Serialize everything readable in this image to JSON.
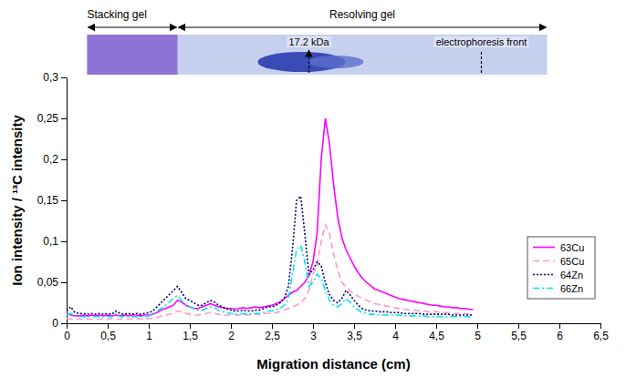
{
  "chart_data": {
    "type": "line",
    "x_label": "Migration distance (cm)",
    "y_label": "Ion intensity / ¹³C intensity",
    "xlim": [
      0,
      6.5
    ],
    "ylim": [
      0,
      0.3
    ],
    "xticks": [
      0,
      {
        "value": 0.5,
        "label": "0,5"
      },
      1,
      {
        "value": 1.5,
        "label": "1,5"
      },
      2,
      {
        "value": 2.5,
        "label": "2,5"
      },
      3,
      {
        "value": 3.5,
        "label": "3,5"
      },
      4,
      {
        "value": 4.5,
        "label": "4,5"
      },
      5,
      {
        "value": 5.5,
        "label": "5,5"
      },
      6,
      {
        "value": 6.5,
        "label": "6,5"
      }
    ],
    "yticks": [
      0,
      {
        "value": 0.05,
        "label": "0,05"
      },
      {
        "value": 0.1,
        "label": "0,1"
      },
      {
        "value": 0.15,
        "label": "0,15"
      },
      {
        "value": 0.2,
        "label": "0,2"
      },
      {
        "value": 0.25,
        "label": "0,25"
      },
      {
        "value": 0.3,
        "label": "0,3"
      }
    ],
    "legend": "right",
    "grid": false,
    "regions": [
      {
        "label": "Stacking gel",
        "x": [
          0.25,
          1.35
        ]
      },
      {
        "label": "Resolving gel",
        "x": [
          1.35,
          5.85
        ]
      }
    ],
    "annotations": [
      {
        "text": "17.2 kDa",
        "x": 2.95
      },
      {
        "text": "electrophoresis front",
        "x": 5.05
      }
    ],
    "x": [
      0,
      0.05,
      0.1,
      0.15,
      0.2,
      0.25,
      0.3,
      0.35,
      0.4,
      0.45,
      0.5,
      0.55,
      0.6,
      0.65,
      0.7,
      0.75,
      0.8,
      0.85,
      0.9,
      0.95,
      1,
      1.05,
      1.1,
      1.15,
      1.2,
      1.25,
      1.3,
      1.35,
      1.4,
      1.45,
      1.5,
      1.55,
      1.6,
      1.65,
      1.7,
      1.75,
      1.8,
      1.85,
      1.9,
      1.95,
      2,
      2.05,
      2.1,
      2.15,
      2.2,
      2.25,
      2.3,
      2.35,
      2.4,
      2.45,
      2.5,
      2.55,
      2.6,
      2.65,
      2.7,
      2.75,
      2.8,
      2.85,
      2.9,
      2.95,
      3,
      3.05,
      3.1,
      3.15,
      3.2,
      3.25,
      3.3,
      3.35,
      3.4,
      3.45,
      3.5,
      3.55,
      3.6,
      3.65,
      3.7,
      3.75,
      3.8,
      3.85,
      3.9,
      3.95,
      4,
      4.05,
      4.1,
      4.15,
      4.2,
      4.25,
      4.3,
      4.35,
      4.4,
      4.45,
      4.5,
      4.55,
      4.6,
      4.65,
      4.7,
      4.75,
      4.8,
      4.85,
      4.9,
      4.95
    ],
    "series": [
      {
        "name": "63Cu",
        "color": "#ff00ff",
        "line_style": "solid",
        "values": [
          0.012,
          0.01,
          0.009,
          0.009,
          0.01,
          0.009,
          0.01,
          0.009,
          0.01,
          0.009,
          0.01,
          0.009,
          0.01,
          0.009,
          0.01,
          0.009,
          0.01,
          0.01,
          0.009,
          0.01,
          0.01,
          0.011,
          0.013,
          0.016,
          0.018,
          0.02,
          0.022,
          0.028,
          0.026,
          0.022,
          0.02,
          0.018,
          0.018,
          0.02,
          0.022,
          0.024,
          0.022,
          0.02,
          0.019,
          0.018,
          0.018,
          0.017,
          0.018,
          0.019,
          0.018,
          0.019,
          0.02,
          0.019,
          0.02,
          0.021,
          0.022,
          0.024,
          0.026,
          0.03,
          0.034,
          0.038,
          0.04,
          0.045,
          0.05,
          0.058,
          0.075,
          0.11,
          0.2,
          0.25,
          0.22,
          0.17,
          0.13,
          0.105,
          0.09,
          0.08,
          0.07,
          0.062,
          0.055,
          0.05,
          0.046,
          0.042,
          0.04,
          0.038,
          0.036,
          0.034,
          0.032,
          0.03,
          0.029,
          0.028,
          0.027,
          0.026,
          0.025,
          0.024,
          0.023,
          0.022,
          0.022,
          0.021,
          0.02,
          0.02,
          0.019,
          0.019,
          0.018,
          0.018,
          0.017,
          0.017
        ]
      },
      {
        "name": "65Cu",
        "color": "#ff99cc",
        "line_style": "dashed",
        "values": [
          0.006,
          0.005,
          0.005,
          0.005,
          0.005,
          0.005,
          0.005,
          0.005,
          0.005,
          0.005,
          0.005,
          0.006,
          0.005,
          0.005,
          0.006,
          0.005,
          0.005,
          0.006,
          0.005,
          0.005,
          0.006,
          0.006,
          0.007,
          0.009,
          0.01,
          0.011,
          0.012,
          0.015,
          0.014,
          0.012,
          0.011,
          0.01,
          0.01,
          0.011,
          0.012,
          0.013,
          0.012,
          0.011,
          0.01,
          0.01,
          0.01,
          0.01,
          0.01,
          0.011,
          0.01,
          0.011,
          0.011,
          0.011,
          0.012,
          0.012,
          0.012,
          0.013,
          0.014,
          0.016,
          0.018,
          0.02,
          0.022,
          0.025,
          0.03,
          0.04,
          0.06,
          0.07,
          0.1,
          0.12,
          0.11,
          0.085,
          0.065,
          0.05,
          0.045,
          0.04,
          0.036,
          0.033,
          0.03,
          0.028,
          0.026,
          0.024,
          0.023,
          0.022,
          0.021,
          0.02,
          0.019,
          0.018,
          0.017,
          0.017,
          0.016,
          0.016,
          0.015,
          0.015,
          0.014,
          0.014,
          0.014,
          0.013,
          0.013,
          0.013,
          0.012,
          0.012,
          0.012,
          0.012,
          0.011,
          0.011
        ]
      },
      {
        "name": "64Zn",
        "color": "#000080",
        "line_style": "dotted",
        "values": [
          0.015,
          0.02,
          0.013,
          0.012,
          0.012,
          0.011,
          0.012,
          0.011,
          0.012,
          0.011,
          0.012,
          0.011,
          0.015,
          0.012,
          0.011,
          0.012,
          0.011,
          0.012,
          0.011,
          0.012,
          0.013,
          0.015,
          0.02,
          0.025,
          0.03,
          0.035,
          0.04,
          0.045,
          0.038,
          0.03,
          0.028,
          0.025,
          0.022,
          0.022,
          0.025,
          0.028,
          0.026,
          0.022,
          0.02,
          0.018,
          0.016,
          0.015,
          0.015,
          0.016,
          0.015,
          0.015,
          0.016,
          0.016,
          0.018,
          0.02,
          0.02,
          0.022,
          0.025,
          0.03,
          0.045,
          0.09,
          0.15,
          0.155,
          0.11,
          0.06,
          0.065,
          0.075,
          0.07,
          0.05,
          0.035,
          0.028,
          0.025,
          0.03,
          0.04,
          0.035,
          0.028,
          0.022,
          0.018,
          0.016,
          0.015,
          0.015,
          0.014,
          0.014,
          0.014,
          0.013,
          0.013,
          0.013,
          0.012,
          0.012,
          0.012,
          0.012,
          0.012,
          0.011,
          0.011,
          0.011,
          0.011,
          0.011,
          0.011,
          0.011,
          0.01,
          0.01,
          0.01,
          0.01,
          0.01,
          0.01
        ]
      },
      {
        "name": "66Zn",
        "color": "#00e5ee",
        "line_style": "dashdot",
        "values": [
          0.01,
          0.012,
          0.009,
          0.008,
          0.008,
          0.008,
          0.008,
          0.008,
          0.008,
          0.008,
          0.008,
          0.008,
          0.012,
          0.008,
          0.008,
          0.008,
          0.008,
          0.008,
          0.008,
          0.008,
          0.009,
          0.011,
          0.015,
          0.018,
          0.022,
          0.026,
          0.03,
          0.034,
          0.028,
          0.022,
          0.02,
          0.018,
          0.016,
          0.016,
          0.018,
          0.02,
          0.019,
          0.016,
          0.014,
          0.013,
          0.012,
          0.011,
          0.011,
          0.012,
          0.011,
          0.011,
          0.012,
          0.012,
          0.013,
          0.015,
          0.015,
          0.016,
          0.018,
          0.022,
          0.03,
          0.06,
          0.09,
          0.095,
          0.075,
          0.045,
          0.05,
          0.06,
          0.055,
          0.04,
          0.028,
          0.022,
          0.02,
          0.024,
          0.03,
          0.026,
          0.02,
          0.016,
          0.013,
          0.012,
          0.011,
          0.011,
          0.01,
          0.01,
          0.01,
          0.01,
          0.01,
          0.01,
          0.009,
          0.009,
          0.009,
          0.009,
          0.009,
          0.009,
          0.008,
          0.008,
          0.008,
          0.008,
          0.008,
          0.008,
          0.008,
          0.008,
          0.008,
          0.008,
          0.008,
          0.008
        ]
      }
    ]
  }
}
